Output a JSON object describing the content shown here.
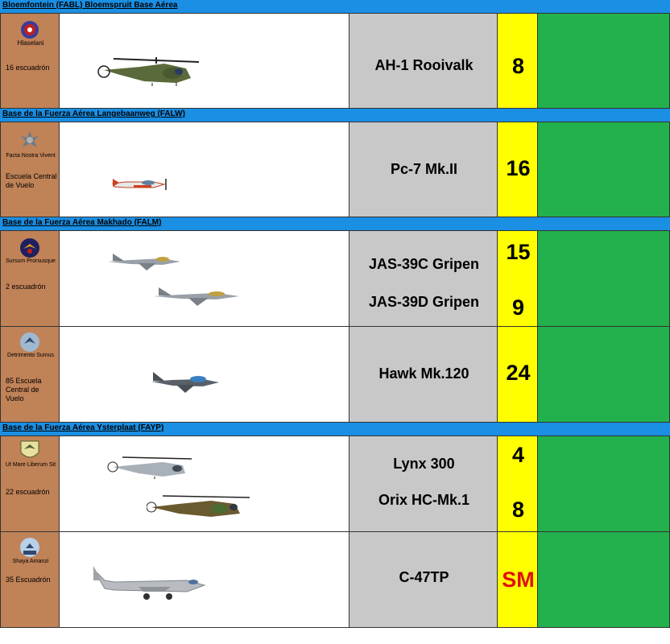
{
  "bases": [
    {
      "title": "Bloemfontein (FABL) Bloemspruit Base Aérea"
    },
    {
      "title": "Base de la Fuerza Aérea Langebaanweg (FALW)"
    },
    {
      "title": "Base de la Fuerza Aérea Makhado (FALM)"
    },
    {
      "title": "Base de la Fuerza Aérea Ysterplaat (FAYP)"
    }
  ],
  "rows": [
    {
      "motto": "Hlaselani",
      "unit": "16 escuadrón",
      "aircraft": [
        "AH-1 Rooivalk"
      ],
      "counts": [
        "8"
      ],
      "icons": [
        "squadron-16-emblem-icon",
        "rooivalk-helicopter-icon"
      ]
    },
    {
      "motto": "Facta Nostra Vivent",
      "unit": "Escuela Central de Vuelo",
      "aircraft": [
        "Pc-7 Mk.II"
      ],
      "counts": [
        "16"
      ],
      "icons": [
        "central-flying-school-emblem-icon",
        "pc7-trainer-icon"
      ]
    },
    {
      "motto": "Sursum Prorsusque",
      "unit": "2 escuadrón",
      "aircraft": [
        "JAS-39C Gripen",
        "JAS-39D Gripen"
      ],
      "counts": [
        "15",
        "9"
      ],
      "icons": [
        "squadron-2-emblem-icon",
        "gripen-jet-icon"
      ]
    },
    {
      "motto": "Detrimento Sumus",
      "unit": "85 Escuela Central de Vuelo",
      "aircraft": [
        "Hawk Mk.120"
      ],
      "counts": [
        "24"
      ],
      "icons": [
        "squadron-85-emblem-icon",
        "hawk-jet-icon"
      ]
    },
    {
      "motto": "Ut Mare Liberum Sit",
      "unit": "22 escuadrón",
      "aircraft": [
        "Lynx 300",
        "Orix HC-Mk.1"
      ],
      "counts": [
        "4",
        "8"
      ],
      "icons": [
        "squadron-22-emblem-icon",
        "helicopter-icon"
      ]
    },
    {
      "motto": "Shaya Amanzi",
      "unit": "35 Escuadrón",
      "aircraft": [
        "C-47TP"
      ],
      "counts": [
        "SM"
      ],
      "icons": [
        "squadron-35-emblem-icon",
        "dakota-transport-icon"
      ]
    }
  ],
  "colors": {
    "header": "#1a8fe3",
    "unit_cell": "#c08257",
    "name_cell": "#c8c8c8",
    "count_cell": "#ffff00",
    "status_cell": "#22b14c",
    "sm_text": "#e01010"
  }
}
